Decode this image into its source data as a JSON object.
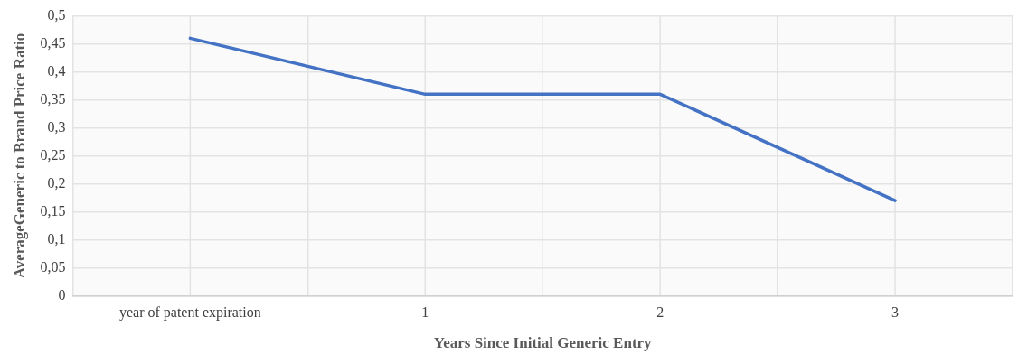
{
  "chart_data": {
    "type": "line",
    "xlabel": "Years Since Initial Generic Entry",
    "ylabel": "AverageGeneric to Brand Price Ratio",
    "categories": [
      "year of patent expiration",
      "1",
      "2",
      "3"
    ],
    "series": [
      {
        "color": "#4472c4",
        "values": [
          0.46,
          0.36,
          0.36,
          0.17
        ]
      }
    ],
    "ylim": [
      0,
      0.5
    ],
    "yticks": [
      {
        "value": 0,
        "label": "0"
      },
      {
        "value": 0.05,
        "label": "0,05"
      },
      {
        "value": 0.1,
        "label": "0,1"
      },
      {
        "value": 0.15,
        "label": "0,15"
      },
      {
        "value": 0.2,
        "label": "0,2"
      },
      {
        "value": 0.25,
        "label": "0,25"
      },
      {
        "value": 0.3,
        "label": "0,3"
      },
      {
        "value": 0.35,
        "label": "0,35"
      },
      {
        "value": 0.4,
        "label": "0,4"
      },
      {
        "value": 0.45,
        "label": "0,45"
      },
      {
        "value": 0.5,
        "label": "0,5"
      }
    ],
    "grid": true,
    "legend": false,
    "marker": "none",
    "line_style": "solid"
  }
}
